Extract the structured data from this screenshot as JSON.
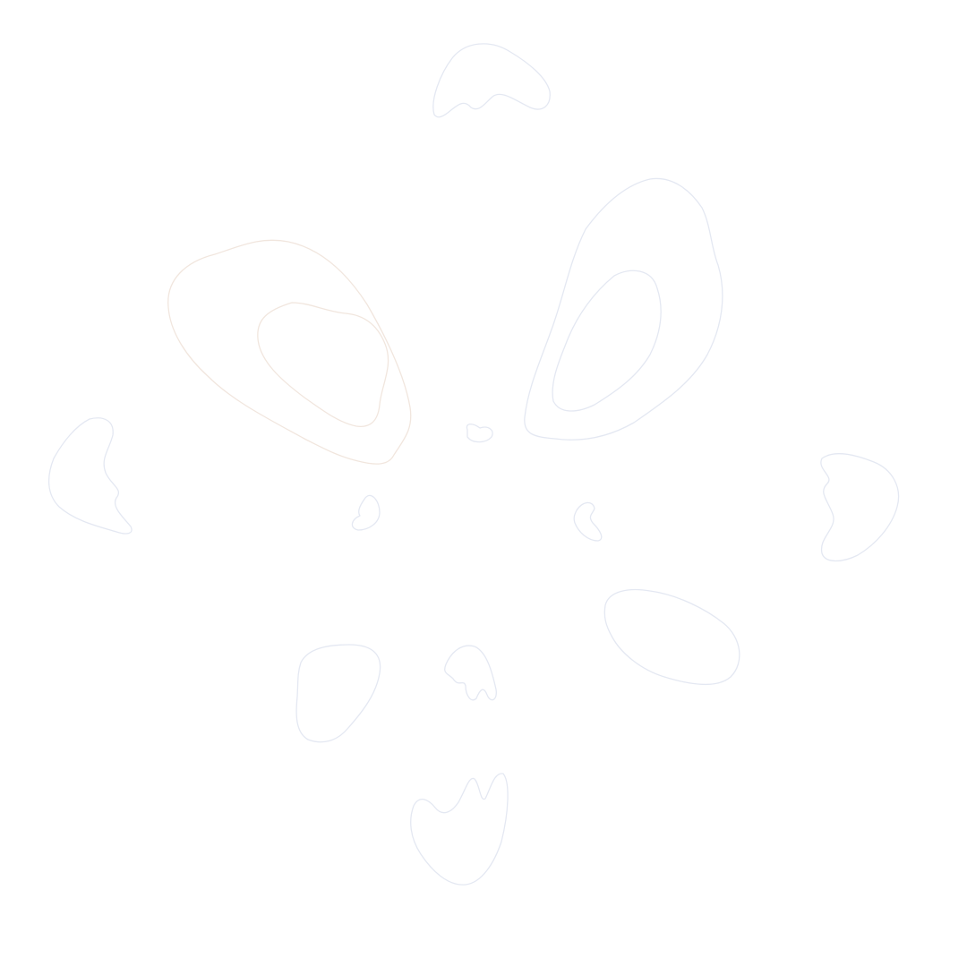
{
  "palette": {
    "background": "#ffffff",
    "outline": "#e4e8f2",
    "outline_warm": "#f1e6de"
  },
  "shapes": [
    "top-crown-blob",
    "left-eye-outer",
    "left-eye-inner",
    "right-eye-outer",
    "right-eye-inner",
    "center-small-blob",
    "left-side-blob",
    "right-side-blob",
    "left-cheek-small",
    "right-cheek-small",
    "right-lower-oval",
    "lower-left-blob",
    "lower-center-small",
    "bottom-blob"
  ]
}
